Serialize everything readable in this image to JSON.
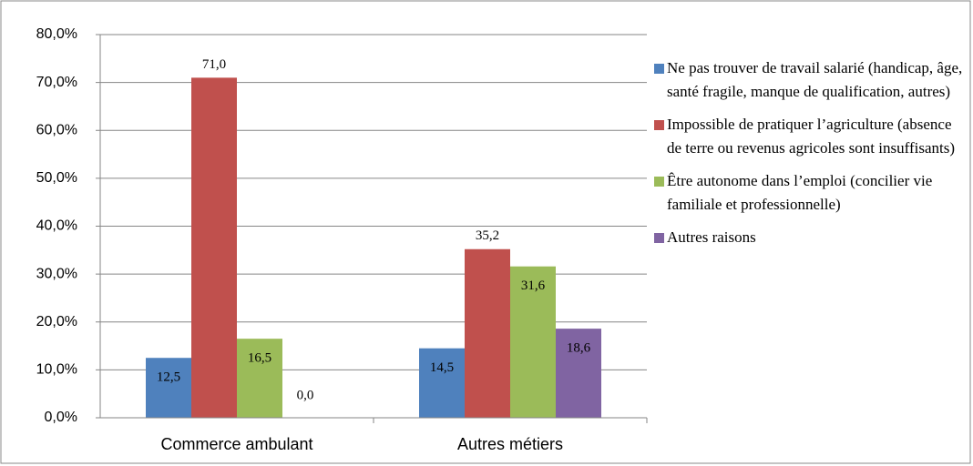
{
  "chart_data": {
    "type": "bar",
    "categories": [
      "Commerce ambulant",
      "Autres métiers"
    ],
    "series": [
      {
        "name": "Ne pas trouver de travail salarié (handicap, âge, santé fragile, manque de qualification, autres)",
        "color": "#4f81bd",
        "values": [
          12.5,
          14.5
        ],
        "value_labels": [
          "12,5",
          "14,5"
        ]
      },
      {
        "name": "Impossible de pratiquer l’agriculture (absence de terre ou revenus agricoles sont insuffisants)",
        "color": "#c0504d",
        "values": [
          71.0,
          35.2
        ],
        "value_labels": [
          "71,0",
          "35,2"
        ]
      },
      {
        "name": "Être autonome dans l’emploi (concilier vie familiale et professionnelle)",
        "color": "#9bbb59",
        "values": [
          16.5,
          31.6
        ],
        "value_labels": [
          "16,5",
          "31,6"
        ]
      },
      {
        "name": "Autres raisons",
        "color": "#8064a2",
        "values": [
          0.0,
          18.6
        ],
        "value_labels": [
          "0,0",
          "18,6"
        ]
      }
    ],
    "ylim": [
      0,
      80
    ],
    "yticks": [
      {
        "value": 0,
        "label": "0,0%"
      },
      {
        "value": 10,
        "label": "10,0%"
      },
      {
        "value": 20,
        "label": "20,0%"
      },
      {
        "value": 30,
        "label": "30,0%"
      },
      {
        "value": 40,
        "label": "40,0%"
      },
      {
        "value": 50,
        "label": "50,0%"
      },
      {
        "value": 60,
        "label": "60,0%"
      },
      {
        "value": 70,
        "label": "70,0%"
      },
      {
        "value": 80,
        "label": "80,0%"
      }
    ],
    "grid": true,
    "legend": "right"
  }
}
